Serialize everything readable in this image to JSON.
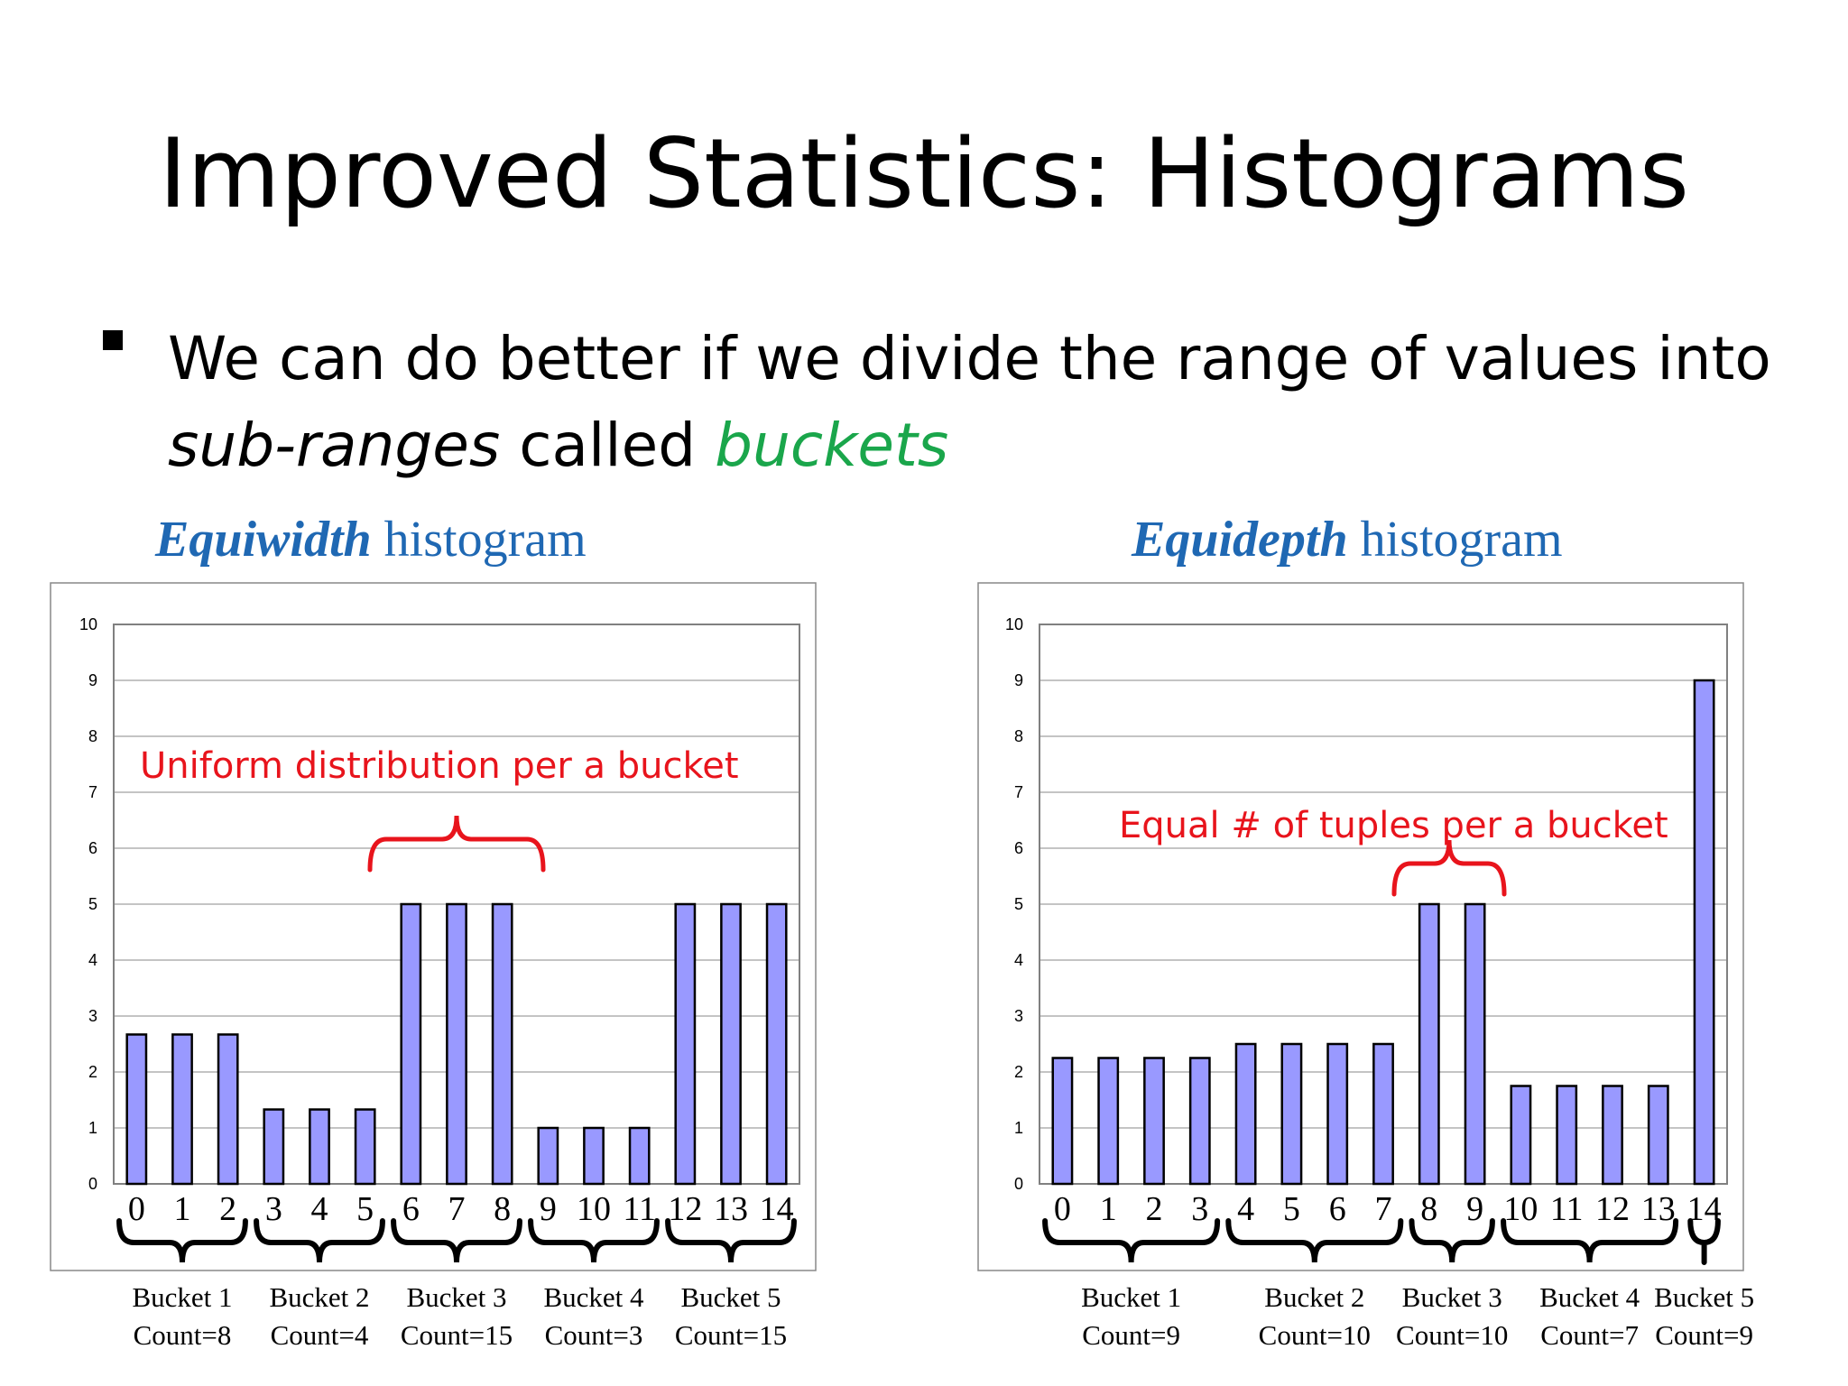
{
  "slide": {
    "title": "Improved Statistics: Histograms",
    "bullet": {
      "part1": "We can do better if we divide the range of values into",
      "part2_italic": "sub-ranges",
      "part3": " called ",
      "part4_green_italic": "buckets"
    }
  },
  "colors": {
    "bar_fill": "#9999ff",
    "title_blue": "#1f68b3",
    "annotation_red": "#e8141c",
    "green": "#1aa64b"
  },
  "chart_data": [
    {
      "type": "bar",
      "title_bold": "Equiwidth",
      "title_rest": " histogram",
      "categories": [
        "0",
        "1",
        "2",
        "3",
        "4",
        "5",
        "6",
        "7",
        "8",
        "9",
        "10",
        "11",
        "12",
        "13",
        "14"
      ],
      "values": [
        2.67,
        2.67,
        2.67,
        1.33,
        1.33,
        1.33,
        5,
        5,
        5,
        1,
        1,
        1,
        5,
        5,
        5
      ],
      "ylim": [
        0,
        10
      ],
      "yticks": [
        "0",
        "1",
        "2",
        "3",
        "4",
        "5",
        "6",
        "7",
        "8",
        "9",
        "10"
      ],
      "grid": true,
      "annotation": "Uniform distribution per a bucket",
      "buckets": [
        {
          "name": "Bucket 1",
          "count": "Count=8",
          "from": 0,
          "to": 2
        },
        {
          "name": "Bucket 2",
          "count": "Count=4",
          "from": 3,
          "to": 5
        },
        {
          "name": "Bucket 3",
          "count": "Count=15",
          "from": 6,
          "to": 8
        },
        {
          "name": "Bucket 4",
          "count": "Count=3",
          "from": 9,
          "to": 11
        },
        {
          "name": "Bucket 5",
          "count": "Count=15",
          "from": 12,
          "to": 14
        }
      ]
    },
    {
      "type": "bar",
      "title_bold": "Equidepth",
      "title_rest": " histogram",
      "categories": [
        "0",
        "1",
        "2",
        "3",
        "4",
        "5",
        "6",
        "7",
        "8",
        "9",
        "10",
        "11",
        "12",
        "13",
        "14"
      ],
      "values": [
        2.25,
        2.25,
        2.25,
        2.25,
        2.5,
        2.5,
        2.5,
        2.5,
        5,
        5,
        1.75,
        1.75,
        1.75,
        1.75,
        9
      ],
      "ylim": [
        0,
        10
      ],
      "yticks": [
        "0",
        "1",
        "2",
        "3",
        "4",
        "5",
        "6",
        "7",
        "8",
        "9",
        "10"
      ],
      "grid": true,
      "annotation": "Equal # of tuples per a bucket",
      "buckets": [
        {
          "name": "Bucket 1",
          "count": "Count=9",
          "from": 0,
          "to": 3
        },
        {
          "name": "Bucket 2",
          "count": "Count=10",
          "from": 4,
          "to": 7
        },
        {
          "name": "Bucket 3",
          "count": "Count=10",
          "from": 8,
          "to": 9
        },
        {
          "name": "Bucket 4",
          "count": "Count=7",
          "from": 10,
          "to": 13
        },
        {
          "name": "Bucket 5",
          "count": "Count=9",
          "from": 14,
          "to": 14
        }
      ]
    }
  ]
}
